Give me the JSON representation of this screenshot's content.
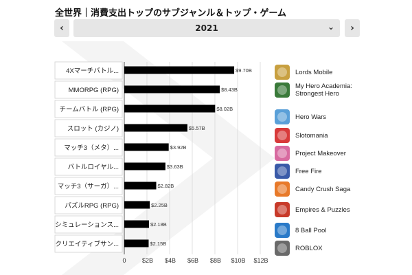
{
  "header": {
    "title": "全世界｜消費支出トップのサブジャンル＆トップ・ゲーム",
    "prev_label": "‹",
    "next_label": "›",
    "year": "2021"
  },
  "chart_data": {
    "type": "bar",
    "orientation": "horizontal",
    "title": "全世界｜消費支出トップのサブジャンル＆トップ・ゲーム",
    "categories": [
      "4Xマーチバトル...",
      "MMORPG (RPG)",
      "チームバトル (RPG)",
      "スロット (カジノ)",
      "マッチ3（メタ）...",
      "バトルロイヤル...",
      "マッチ3（サーガ）...",
      "パズルRPG (RPG)",
      "シミュレーションス...",
      "クリエイティブサン..."
    ],
    "values": [
      9.7,
      8.43,
      8.02,
      5.57,
      3.92,
      3.63,
      2.82,
      2.25,
      2.18,
      2.15
    ],
    "value_labels": [
      "$9.70B",
      "$8.43B",
      "$8.02B",
      "$5.57B",
      "$3.92B",
      "$3.63B",
      "$2.82B",
      "$2.25B",
      "$2.18B",
      "$2.15B"
    ],
    "xlim": [
      0,
      12
    ],
    "xticks": [
      0,
      2,
      4,
      6,
      8,
      10,
      12
    ],
    "xtick_labels": [
      "0",
      "$2B",
      "$4B",
      "$6B",
      "$8B",
      "$10B",
      "$12B"
    ],
    "grid": true,
    "bar_color": "#000000"
  },
  "legend": [
    {
      "name": "Lords Mobile",
      "icon": "lords-mobile-icon",
      "color": "#c8a040"
    },
    {
      "name": "My Hero Academia: Strongest Hero",
      "icon": "my-hero-academia-icon",
      "color": "#3a7a3a"
    },
    {
      "name": "Hero Wars",
      "icon": "hero-wars-icon",
      "color": "#5aa0d8"
    },
    {
      "name": "Slotomania",
      "icon": "slotomania-icon",
      "color": "#d83a3a"
    },
    {
      "name": "Project Makeover",
      "icon": "project-makeover-icon",
      "color": "#d86aa0"
    },
    {
      "name": "Free Fire",
      "icon": "free-fire-icon",
      "color": "#3a5aa8"
    },
    {
      "name": "Candy Crush Saga",
      "icon": "candy-crush-icon",
      "color": "#e87a2a"
    },
    {
      "name": "Empires & Puzzles",
      "icon": "empires-puzzles-icon",
      "color": "#c83a2a"
    },
    {
      "name": "8 Ball Pool",
      "icon": "eight-ball-pool-icon",
      "color": "#2a7ac8"
    },
    {
      "name": "ROBLOX",
      "icon": "roblox-icon",
      "color": "#6a6a6a"
    }
  ]
}
